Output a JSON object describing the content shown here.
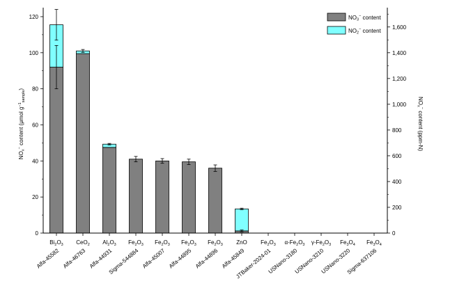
{
  "chart_data": {
    "type": "bar",
    "stacked": true,
    "categories": [
      {
        "compound": "Bi₂O₃",
        "source": "Alfa-45582"
      },
      {
        "compound": "CeO₂",
        "source": "Alfa-46763"
      },
      {
        "compound": "Al₂O₃",
        "source": "Alfa-44931"
      },
      {
        "compound": "Fe₂O₃",
        "source": "Sigma-544884"
      },
      {
        "compound": "Fe₂O₃",
        "source": "Alfa-45007"
      },
      {
        "compound": "Fe₂O₃",
        "source": "Alfa-44895"
      },
      {
        "compound": "Fe₂O₃",
        "source": "Alfa-44896"
      },
      {
        "compound": "ZnO",
        "source": "Alfa-45849"
      },
      {
        "compound": "Fe₂O₃",
        "source": "JTBaker-2024-01"
      },
      {
        "compound": "α-Fe₂O₃",
        "source": "USNano-3180"
      },
      {
        "compound": "γ-Fe₂O₃",
        "source": "USNano-3210"
      },
      {
        "compound": "Fe₃O₄",
        "source": "USNano-3220"
      },
      {
        "compound": "Fe₃O₄",
        "source": "Sigma-637106"
      }
    ],
    "series": [
      {
        "name": "NO3⁻ content",
        "color": "#808080",
        "values": [
          92,
          99.5,
          47.5,
          41,
          40,
          39.5,
          36,
          1.2,
          0,
          0,
          0,
          0,
          0
        ],
        "errors": [
          12,
          0,
          0,
          1.5,
          1.3,
          1.5,
          1.8,
          0.5,
          0,
          0,
          0,
          0,
          0
        ]
      },
      {
        "name": "NO2⁻ content",
        "color": "#80ffff",
        "values": [
          23.5,
          1.5,
          1.8,
          0,
          0,
          0,
          0,
          12.2,
          0,
          0,
          0,
          0,
          0
        ],
        "errors": [
          8.5,
          0.8,
          0.4,
          0,
          0,
          0,
          0,
          0.4,
          0,
          0,
          0,
          0,
          0
        ]
      }
    ],
    "legend": [
      {
        "base": "NO",
        "sub": "3",
        "sup": "−",
        "tail": " content"
      },
      {
        "base": "NO",
        "sub": "2",
        "sup": "−",
        "tail": " content"
      }
    ],
    "legend_position": "top-right",
    "y_left": {
      "label_base": "NO",
      "label_sub": "x",
      "label_sup": "−",
      "label_mid": " content (μmol g",
      "label_sup2": "−1",
      "label_sub2": "sample",
      "label_tail": ")",
      "range": [
        0,
        125
      ],
      "ticks": [
        0,
        20,
        40,
        60,
        80,
        100,
        120
      ],
      "tick_labels": [
        "0",
        "20",
        "40",
        "60",
        "80",
        "100",
        "120"
      ]
    },
    "y_right": {
      "label_base": "NO",
      "label_sub": "x",
      "label_sup": "−",
      "label_tail": " content (ppm-N)",
      "range": [
        0,
        1750
      ],
      "ticks": [
        0,
        200,
        400,
        600,
        800,
        1000,
        1200,
        1400,
        1600
      ],
      "tick_labels": [
        "0",
        "200",
        "400",
        "600",
        "800",
        "1,000",
        "1,200",
        "1,400",
        "1,600"
      ]
    }
  }
}
